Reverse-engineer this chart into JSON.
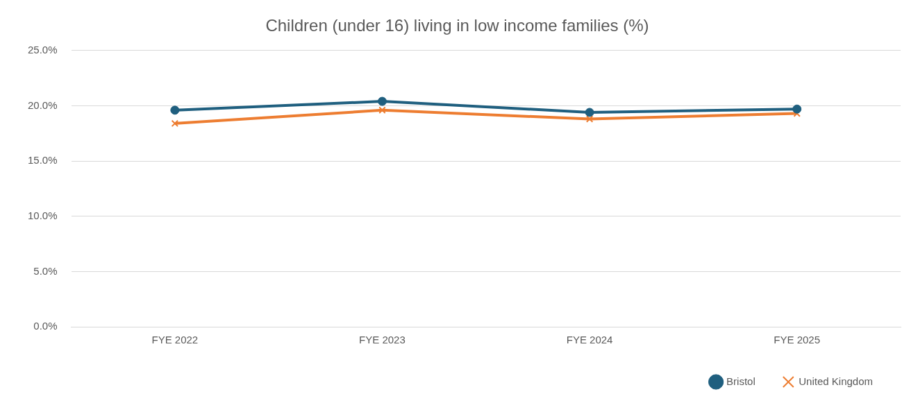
{
  "chart_data": {
    "type": "line",
    "title": "Children (under 16) living in low income families (%)",
    "categories": [
      "FYE 2022",
      "FYE 2023",
      "FYE 2024",
      "FYE 2025"
    ],
    "series": [
      {
        "name": "Bristol",
        "color": "#1f5f7f",
        "values": [
          19.6,
          20.4,
          19.4,
          19.7
        ],
        "marker": "circle"
      },
      {
        "name": "United Kingdom",
        "color": "#ed7d31",
        "values": [
          18.4,
          19.6,
          18.8,
          19.3
        ],
        "marker": "cross"
      }
    ],
    "ylim": [
      0,
      25
    ],
    "yticks": [
      {
        "value": 0,
        "label": "0.0%"
      },
      {
        "value": 5,
        "label": "5.0%"
      },
      {
        "value": 10,
        "label": "10.0%"
      },
      {
        "value": 15,
        "label": "15.0%"
      },
      {
        "value": 20,
        "label": "20.0%"
      },
      {
        "value": 25,
        "label": "25.0%"
      }
    ],
    "grid": "y",
    "legend": "bottom right"
  }
}
